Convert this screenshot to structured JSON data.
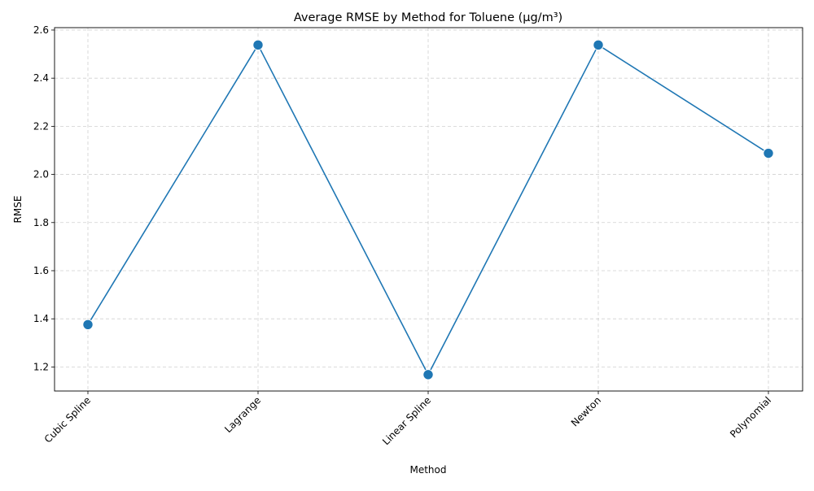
{
  "chart_data": {
    "type": "line",
    "title": "Average RMSE by Method for Toluene (µg/m³)",
    "xlabel": "Method",
    "ylabel": "RMSE",
    "categories": [
      "Cubic Spline",
      "Lagrange",
      "Linear Spline",
      "Newton",
      "Polynomial"
    ],
    "series": [
      {
        "values": [
          1.376,
          2.538,
          1.168,
          2.538,
          2.088
        ],
        "color": "#1f77b4"
      }
    ],
    "ylim": [
      1.1,
      2.61
    ],
    "yticks": [
      1.2,
      1.4,
      1.6,
      1.8,
      2.0,
      2.2,
      2.4,
      2.6
    ],
    "ytick_labels": [
      "1.2",
      "1.4",
      "1.6",
      "1.8",
      "2.0",
      "2.2",
      "2.4",
      "2.6"
    ],
    "grid": true,
    "marker": "circle",
    "xtick_rotation": 45
  }
}
